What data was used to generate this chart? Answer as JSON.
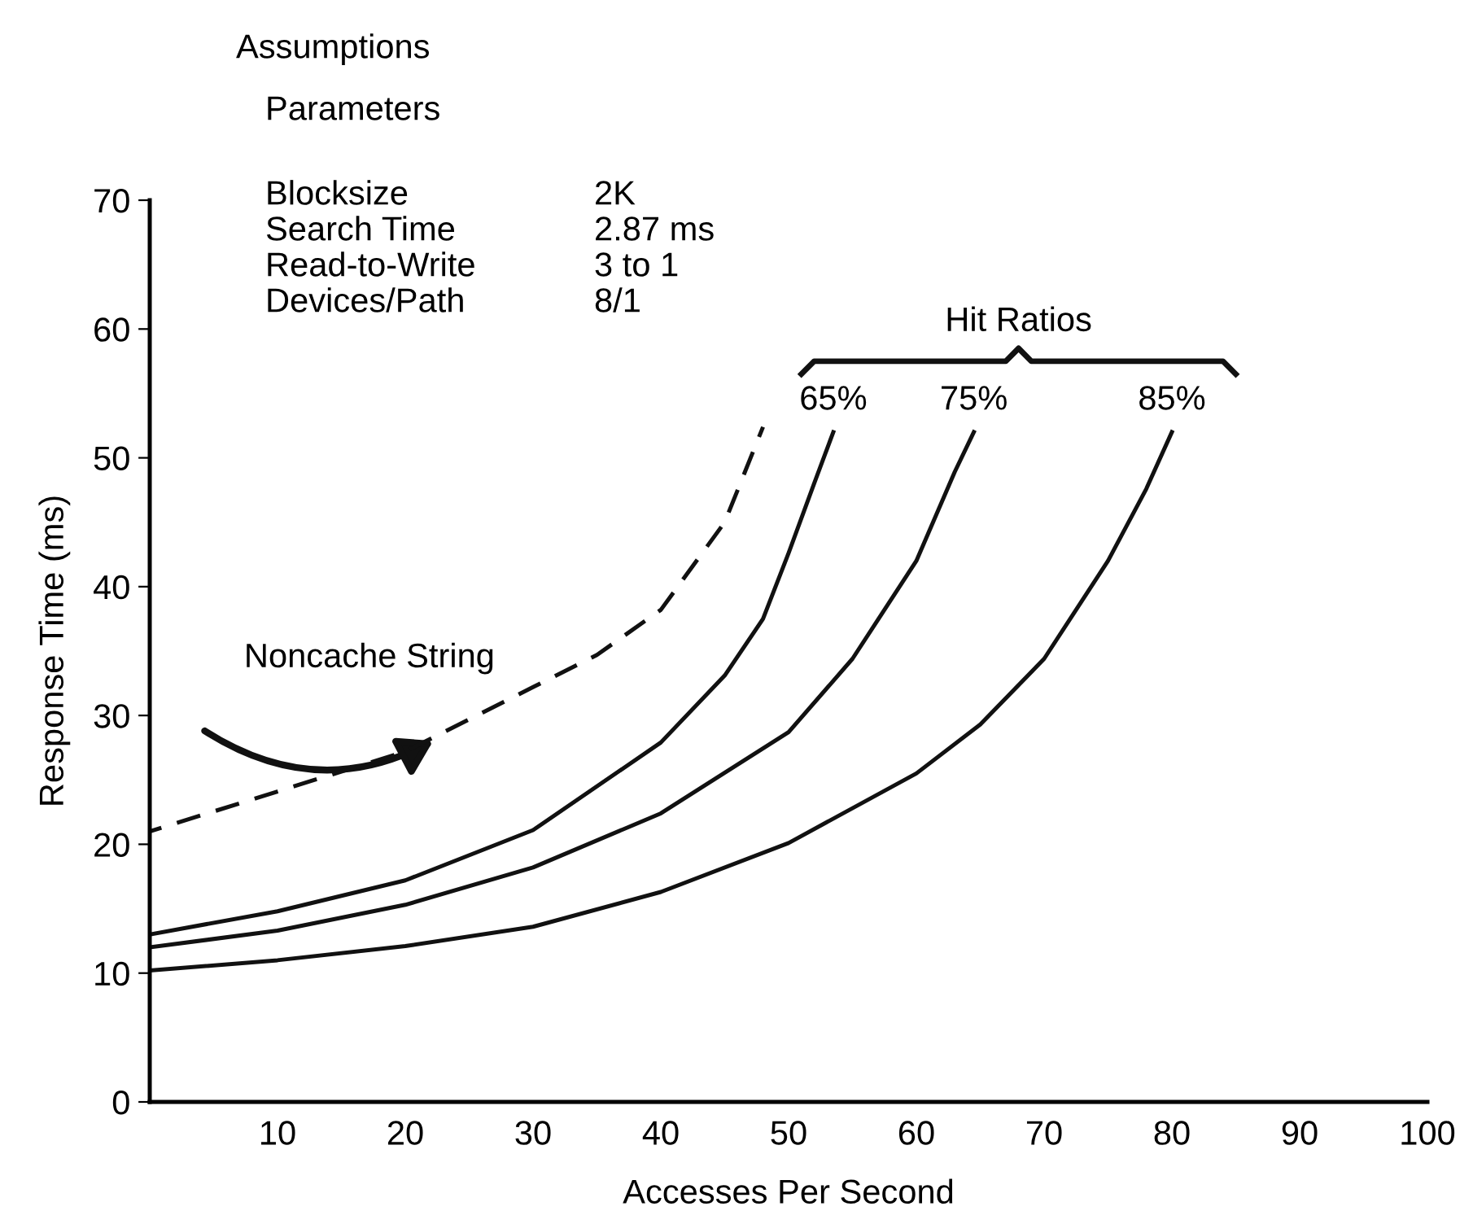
{
  "chart_data": {
    "type": "line",
    "xlabel": "Accesses Per Second",
    "ylabel": "Response Time (ms)",
    "xlim": [
      0,
      100
    ],
    "ylim": [
      0,
      70
    ],
    "xticks": [
      10,
      20,
      30,
      40,
      50,
      60,
      70,
      80,
      90,
      100
    ],
    "yticks": [
      0,
      10,
      20,
      30,
      40,
      50,
      60,
      70
    ],
    "grid": false,
    "legend": false,
    "marker": "none",
    "series": [
      {
        "name": "Noncache String",
        "color": "#111111",
        "line_style": "dashed",
        "x": [
          0,
          10,
          20,
          30,
          35,
          40,
          45,
          48
        ],
        "values": [
          21,
          24.1,
          27.2,
          32.2,
          34.7,
          38.2,
          45,
          52.4
        ]
      },
      {
        "name": "65%",
        "color": "#111111",
        "line_style": "solid",
        "x": [
          0,
          10,
          20,
          30,
          40,
          45,
          48,
          50,
          52,
          53.5
        ],
        "values": [
          13,
          14.8,
          17.2,
          21.1,
          27.9,
          33.1,
          37.5,
          42.6,
          48,
          52
        ]
      },
      {
        "name": "75%",
        "color": "#111111",
        "line_style": "solid",
        "x": [
          0,
          10,
          20,
          30,
          40,
          50,
          55,
          60,
          63,
          64.5
        ],
        "values": [
          12,
          13.3,
          15.3,
          18.2,
          22.4,
          28.7,
          34.4,
          42,
          48.9,
          52
        ]
      },
      {
        "name": "85%",
        "color": "#111111",
        "line_style": "solid",
        "x": [
          0,
          10,
          20,
          30,
          40,
          50,
          60,
          65,
          70,
          75,
          78,
          80
        ],
        "values": [
          10.2,
          11,
          12.1,
          13.6,
          16.3,
          20.1,
          25.5,
          29.3,
          34.4,
          42,
          47.6,
          52
        ]
      }
    ],
    "annotations": [
      "Assumptions",
      "Parameters",
      "Blocksize",
      "2K",
      "Search Time",
      "2.87 ms",
      "Read-to-Write",
      "3 to 1",
      "Devices/Path",
      "8/1",
      "Hit Ratios"
    ]
  }
}
